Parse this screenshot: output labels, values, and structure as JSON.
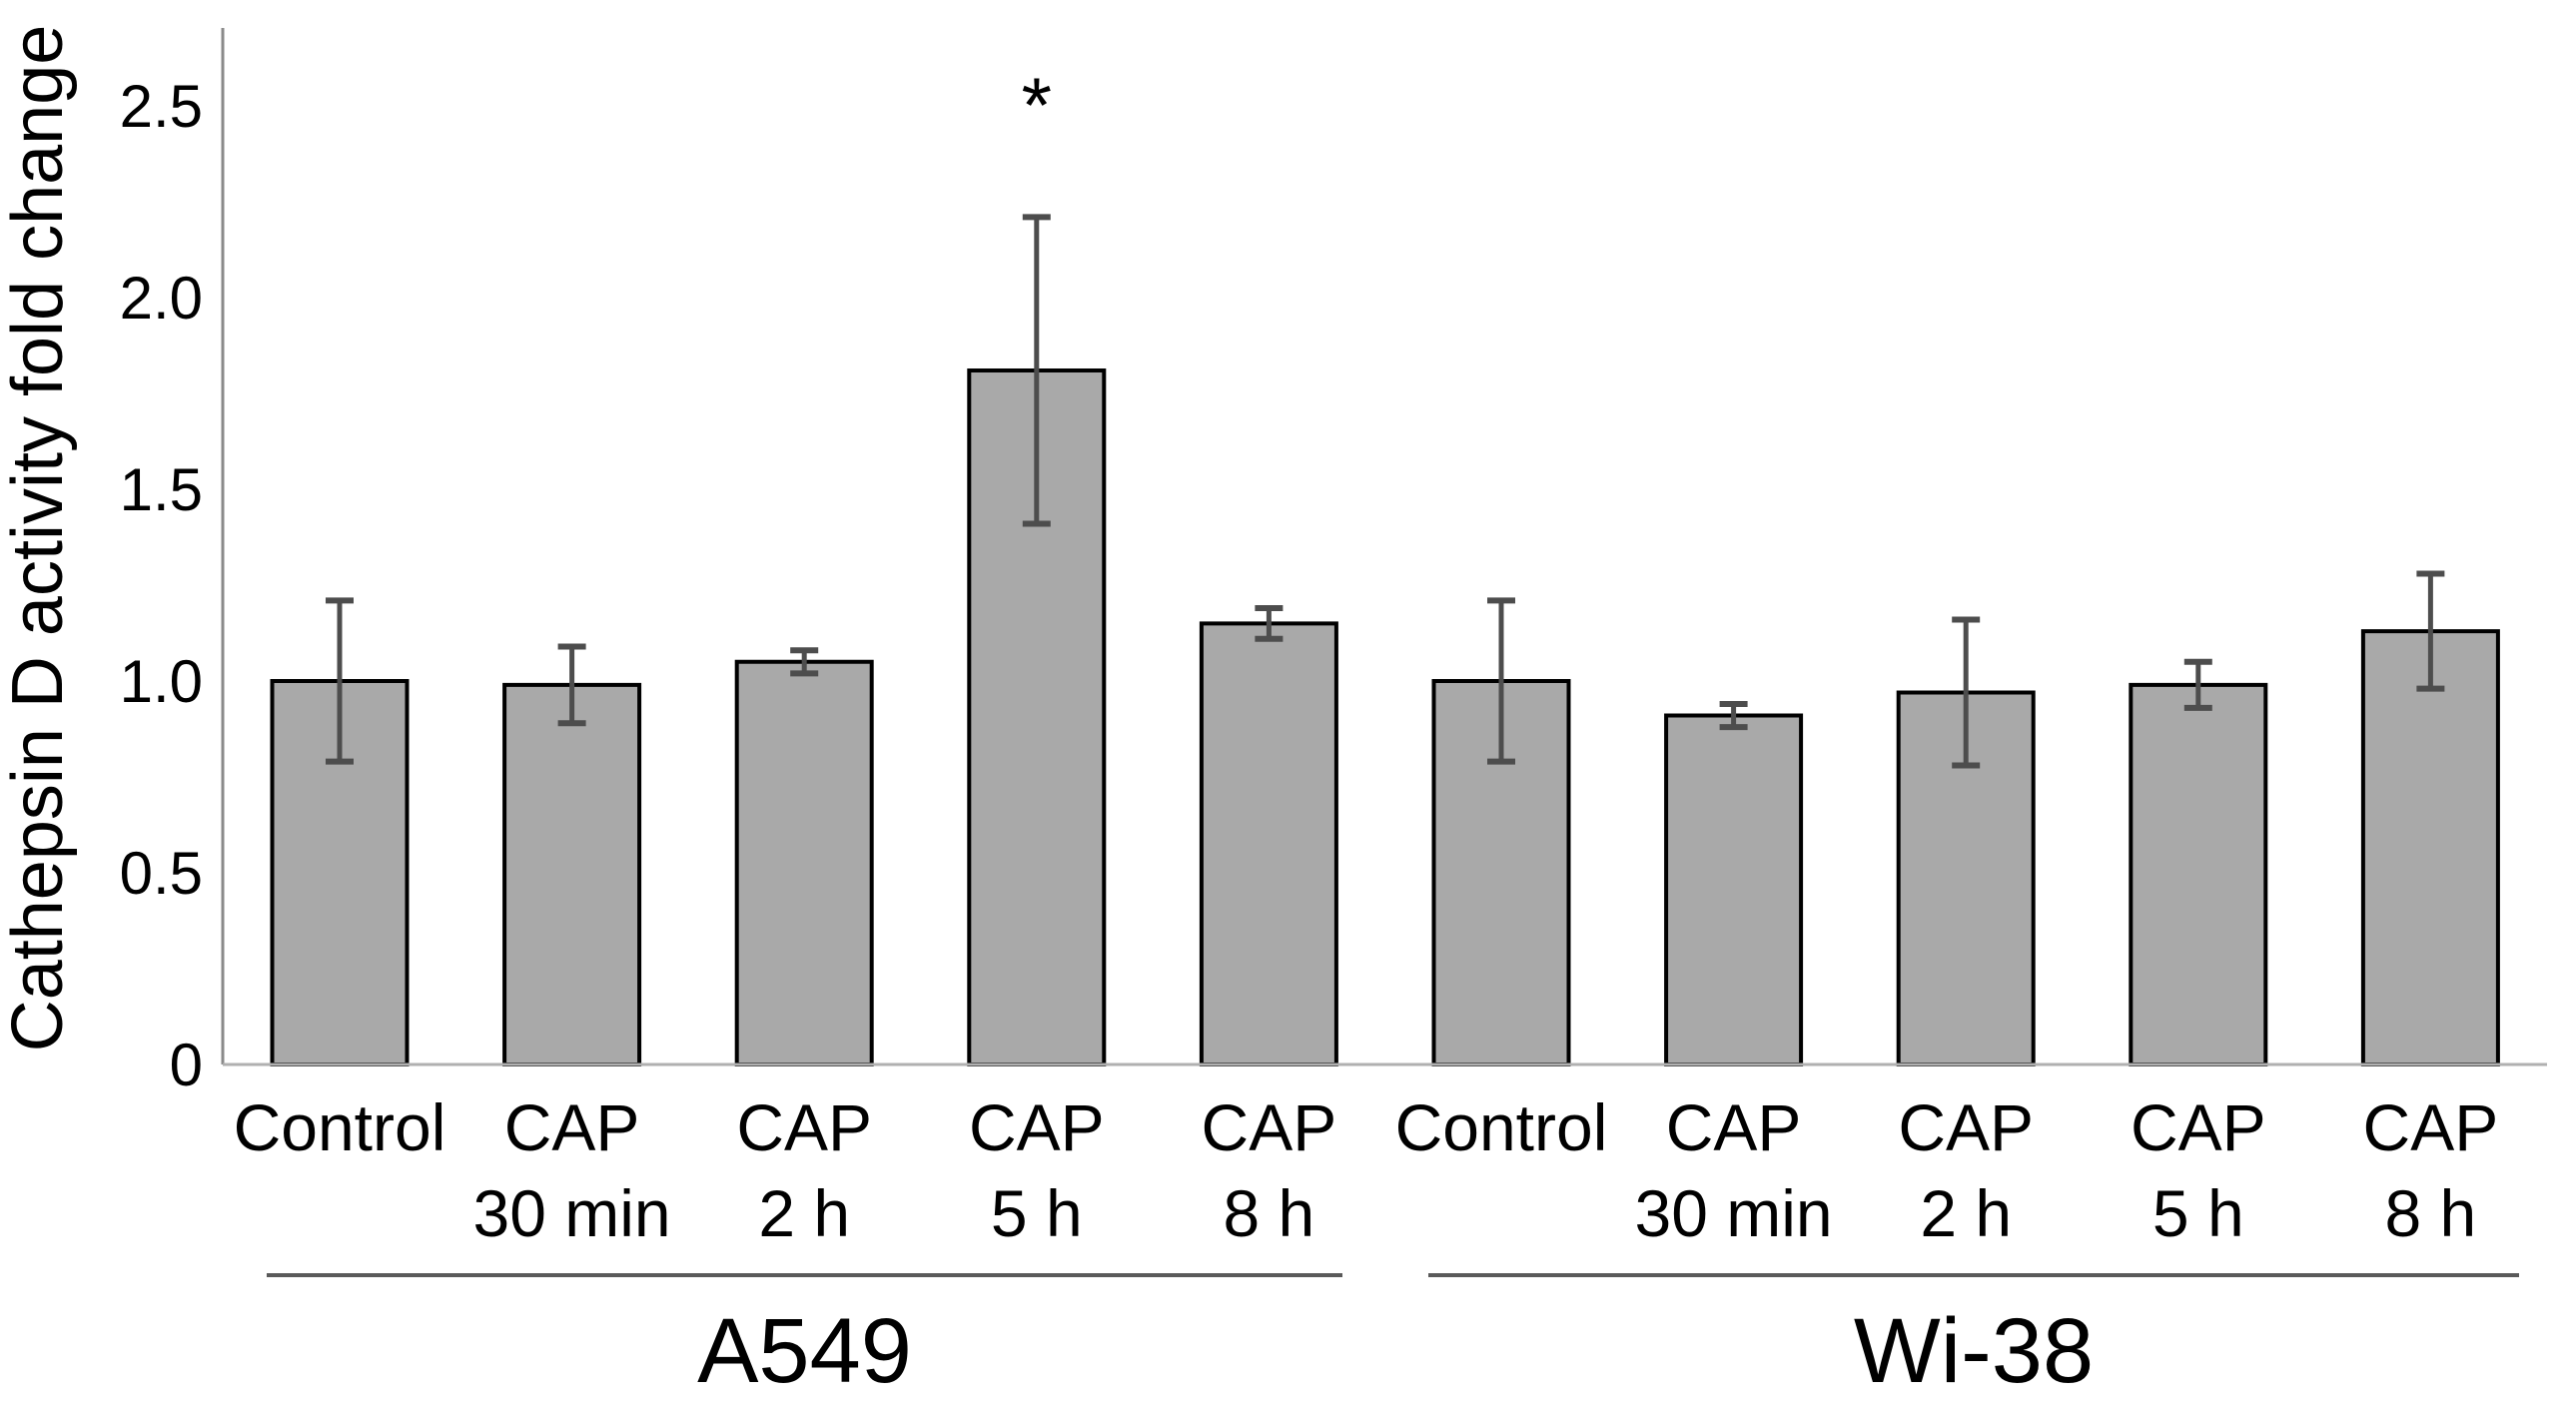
{
  "figure": {
    "background": "#ffffff"
  },
  "chart_data": {
    "type": "bar",
    "title": "",
    "xlabel": "",
    "ylabel": "Cathepsin D activity fold change",
    "ylim": [
      0,
      2.71
    ],
    "yticks": [
      "0",
      "0.5",
      "1.0",
      "1.5",
      "2.0",
      "2.5"
    ],
    "grid": false,
    "legend": null,
    "categories": [
      [
        "Control"
      ],
      [
        "CAP",
        "30 min"
      ],
      [
        "CAP",
        "2 h"
      ],
      [
        "CAP",
        "5 h"
      ],
      [
        "CAP",
        "8 h"
      ],
      [
        "Control"
      ],
      [
        "CAP",
        "30 min"
      ],
      [
        "CAP",
        "2 h"
      ],
      [
        "CAP",
        "5 h"
      ],
      [
        "CAP",
        "8 h"
      ]
    ],
    "series": [
      {
        "name": "Cathepsin D activity fold change",
        "values": [
          1.0,
          0.99,
          1.05,
          1.81,
          1.15,
          1.0,
          0.91,
          0.97,
          0.99,
          1.13
        ],
        "errors": [
          0.21,
          0.1,
          0.03,
          0.4,
          0.04,
          0.21,
          0.03,
          0.19,
          0.06,
          0.15
        ]
      }
    ],
    "groups": [
      {
        "label": "A549",
        "from": 0,
        "to": 4
      },
      {
        "label": "Wi-38",
        "from": 5,
        "to": 9
      }
    ],
    "annotations": [
      {
        "category_index": 3,
        "text": "*"
      }
    ],
    "colors": {
      "bar_fill": "#a9a9a9",
      "bar_edge": "#000000",
      "error_bar": "#4d4d4d",
      "y_axis": "#8a8a8a",
      "x_axis": "#b0b0b0",
      "group_line": "#5a5a5a",
      "text": "#000000"
    }
  }
}
